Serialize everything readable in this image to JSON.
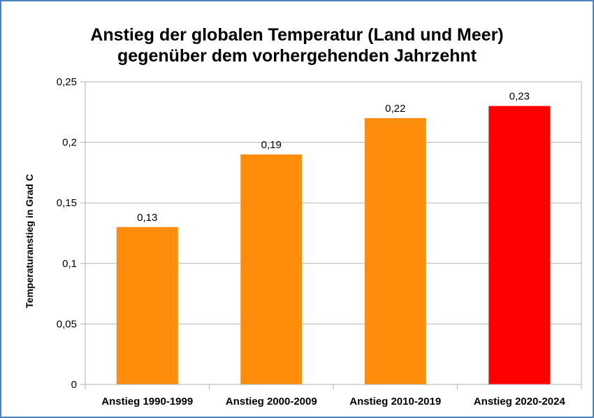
{
  "chart_data": {
    "type": "bar",
    "title_line1": "Anstieg der globalen Temperatur (Land und Meer)",
    "title_line2": "gegenüber dem vorhergehenden Jahrzehnt",
    "ylabel": "Temperaturanstieg in Grad C",
    "categories": [
      "Anstieg 1990-1999",
      "Anstieg 2000-2009",
      "Anstieg 2010-2019",
      "Anstieg 2020-2024"
    ],
    "values": [
      0.13,
      0.19,
      0.22,
      0.23
    ],
    "value_labels": [
      "0,13",
      "0,19",
      "0,22",
      "0,23"
    ],
    "bar_colors": [
      "#ff8c0a",
      "#ff8c0a",
      "#ff8c0a",
      "#ff0000"
    ],
    "ylim": [
      0,
      0.25
    ],
    "yticks": [
      0,
      0.05,
      0.1,
      0.15,
      0.2,
      0.25
    ],
    "ytick_labels": [
      "0",
      "0,05",
      "0,1",
      "0,15",
      "0,2",
      "0,25"
    ],
    "grid": true,
    "legend": "none"
  }
}
